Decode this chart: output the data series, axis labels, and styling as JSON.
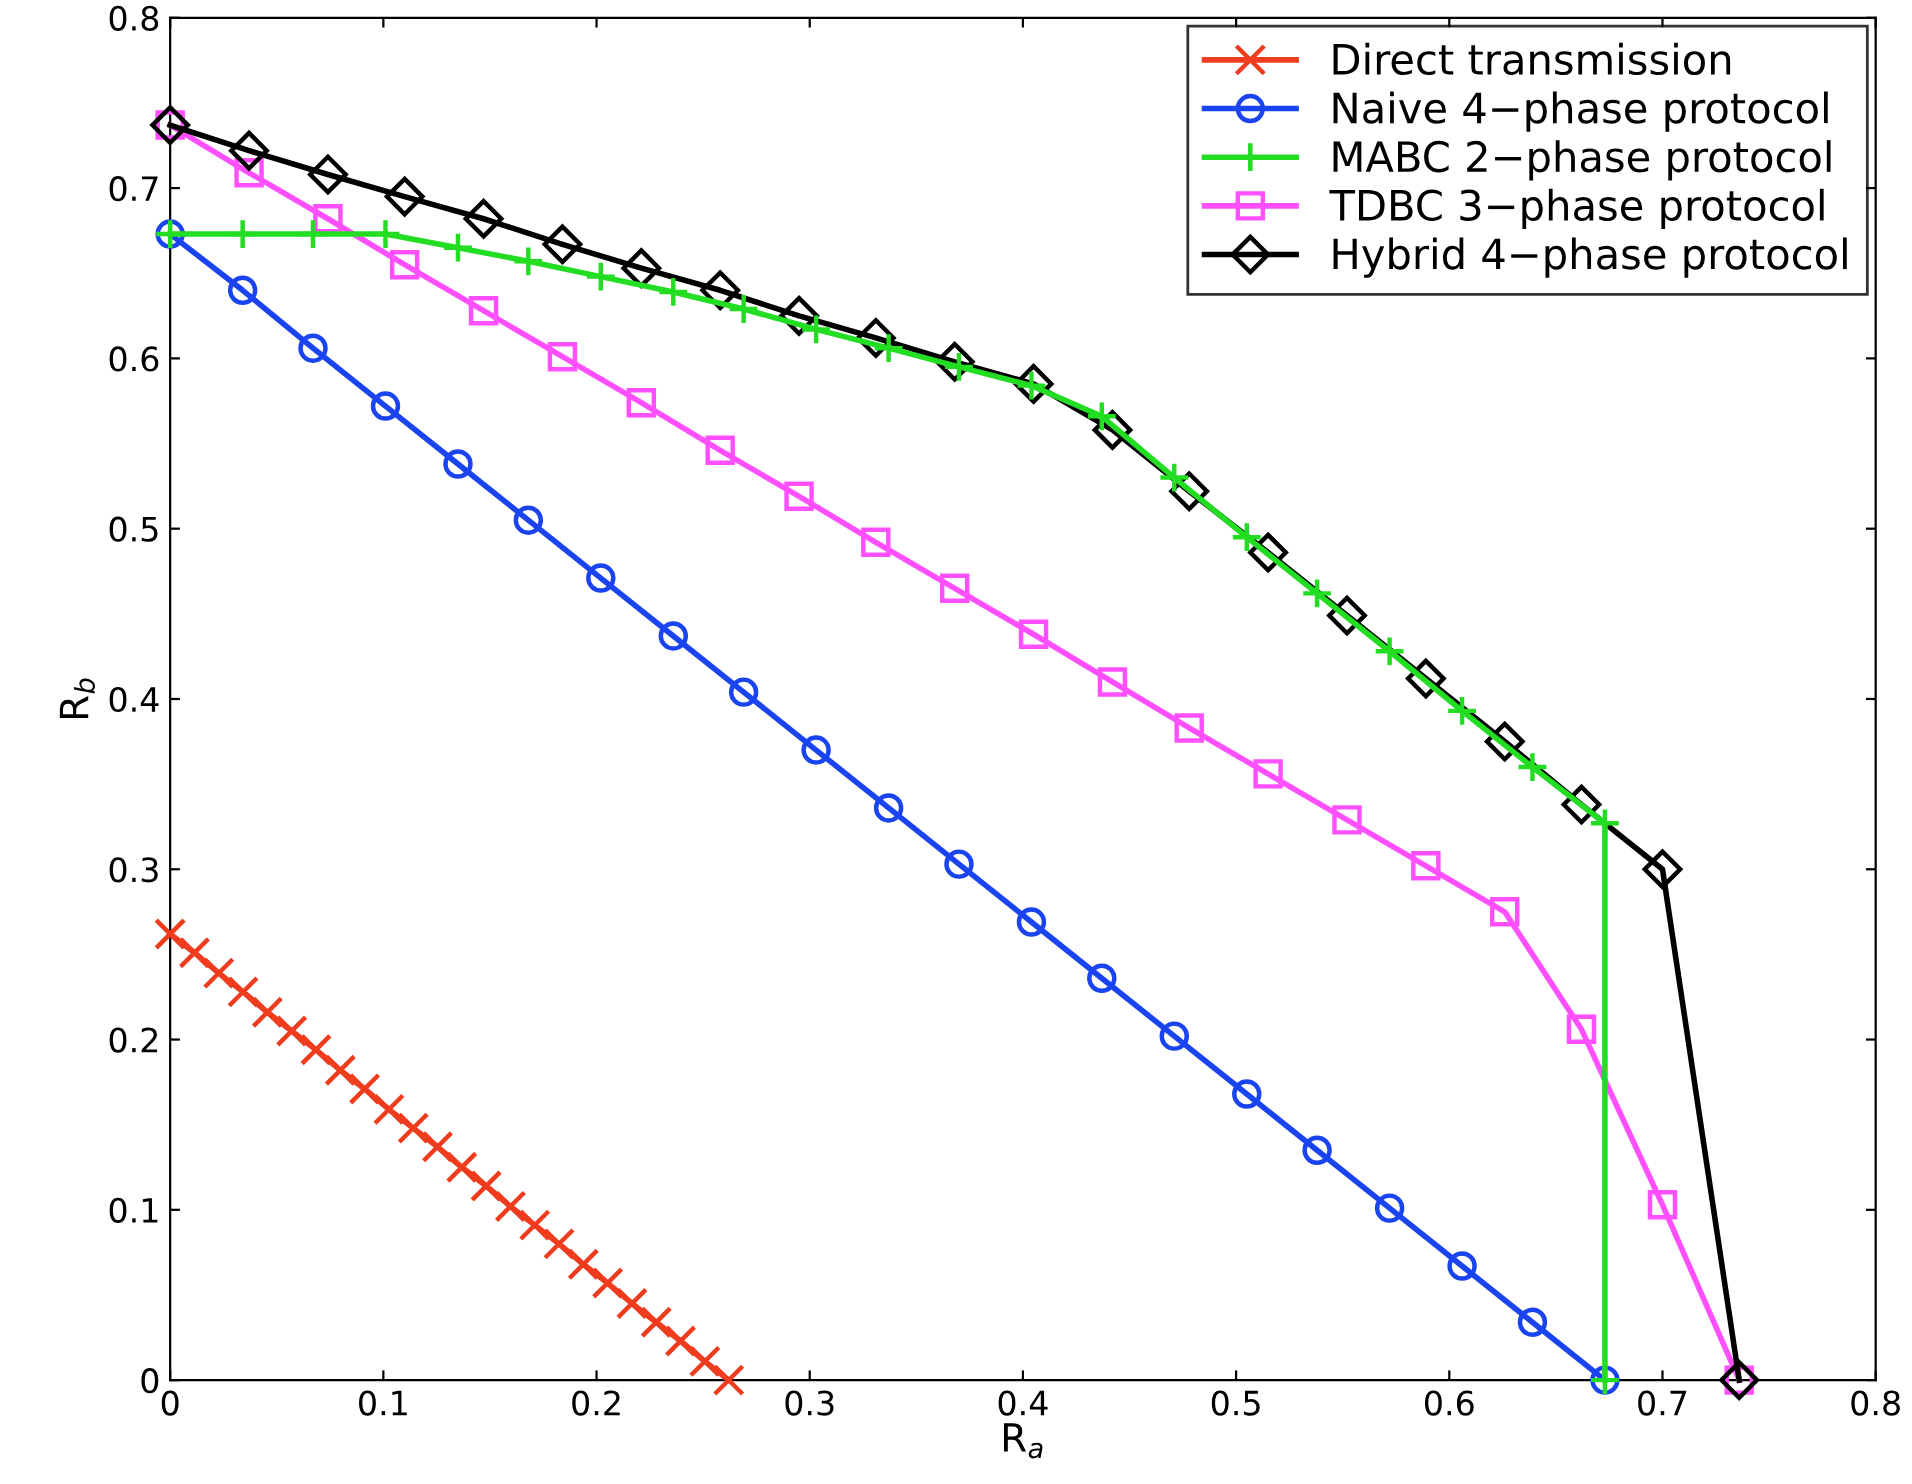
{
  "chart_data": {
    "type": "line",
    "xlabel": "R$_{a}$",
    "ylabel": "R$_{b}$",
    "xlim": [
      0,
      0.8
    ],
    "ylim": [
      0,
      0.8
    ],
    "xticks": [
      0,
      0.1,
      0.2,
      0.3,
      0.4,
      0.5,
      0.6,
      0.7,
      0.8
    ],
    "yticks": [
      0,
      0.1,
      0.2,
      0.3,
      0.4,
      0.5,
      0.6,
      0.7,
      0.8
    ],
    "grid": false,
    "legend": "top right",
    "series": [
      {
        "name": "Direct transmission",
        "color": "#f03c1e",
        "marker": "cross",
        "x": [
          0,
          0.0114,
          0.0228,
          0.0342,
          0.0456,
          0.057,
          0.0684,
          0.0798,
          0.0912,
          0.1026,
          0.114,
          0.1254,
          0.1368,
          0.1482,
          0.1596,
          0.171,
          0.1824,
          0.1938,
          0.2052,
          0.2166,
          0.228,
          0.2394,
          0.2508,
          0.262
        ],
        "values": [
          0.262,
          0.251,
          0.239,
          0.228,
          0.216,
          0.205,
          0.194,
          0.182,
          0.171,
          0.159,
          0.148,
          0.137,
          0.125,
          0.114,
          0.102,
          0.091,
          0.08,
          0.068,
          0.057,
          0.045,
          0.034,
          0.023,
          0.011,
          0
        ]
      },
      {
        "name": "Naive 4−phase protocol",
        "color": "#1a44f0",
        "marker": "circle",
        "x": [
          0,
          0.034,
          0.067,
          0.101,
          0.135,
          0.168,
          0.202,
          0.236,
          0.269,
          0.303,
          0.337,
          0.37,
          0.404,
          0.437,
          0.471,
          0.505,
          0.538,
          0.572,
          0.606,
          0.639,
          0.673
        ],
        "values": [
          0.673,
          0.64,
          0.606,
          0.572,
          0.538,
          0.505,
          0.471,
          0.437,
          0.404,
          0.37,
          0.336,
          0.303,
          0.269,
          0.236,
          0.202,
          0.168,
          0.135,
          0.101,
          0.067,
          0.034,
          0
        ]
      },
      {
        "name": "MABC 2−phase protocol",
        "color": "#22dd22",
        "marker": "cross_plus",
        "x": [
          0,
          0.034,
          0.067,
          0.101,
          0.135,
          0.168,
          0.202,
          0.236,
          0.269,
          0.303,
          0.337,
          0.37,
          0.404,
          0.437,
          0.471,
          0.505,
          0.538,
          0.572,
          0.606,
          0.639,
          0.673,
          0.673
        ],
        "values": [
          0.673,
          0.673,
          0.673,
          0.673,
          0.665,
          0.657,
          0.648,
          0.639,
          0.629,
          0.617,
          0.606,
          0.595,
          0.584,
          0.566,
          0.53,
          0.495,
          0.462,
          0.428,
          0.393,
          0.36,
          0.327,
          0
        ]
      },
      {
        "name": "TDBC 3−phase protocol",
        "color": "#ff4fff",
        "marker": "square",
        "x": [
          0,
          0.037,
          0.074,
          0.11,
          0.147,
          0.184,
          0.221,
          0.258,
          0.295,
          0.331,
          0.368,
          0.405,
          0.442,
          0.478,
          0.515,
          0.552,
          0.589,
          0.626,
          0.662,
          0.7,
          0.736
        ],
        "values": [
          0.737,
          0.709,
          0.682,
          0.655,
          0.628,
          0.601,
          0.574,
          0.546,
          0.519,
          0.492,
          0.465,
          0.438,
          0.41,
          0.383,
          0.356,
          0.329,
          0.302,
          0.275,
          0.206,
          0.103,
          0
        ]
      },
      {
        "name": "Hybrid 4−phase protocol",
        "color": "#000000",
        "marker": "diamond",
        "x": [
          0,
          0.037,
          0.074,
          0.11,
          0.147,
          0.184,
          0.221,
          0.258,
          0.295,
          0.331,
          0.368,
          0.405,
          0.442,
          0.478,
          0.515,
          0.552,
          0.589,
          0.626,
          0.662,
          0.7,
          0.736
        ],
        "values": [
          0.737,
          0.722,
          0.708,
          0.695,
          0.682,
          0.667,
          0.653,
          0.64,
          0.625,
          0.612,
          0.598,
          0.585,
          0.558,
          0.522,
          0.486,
          0.449,
          0.412,
          0.375,
          0.338,
          0.3,
          0
        ]
      }
    ]
  }
}
